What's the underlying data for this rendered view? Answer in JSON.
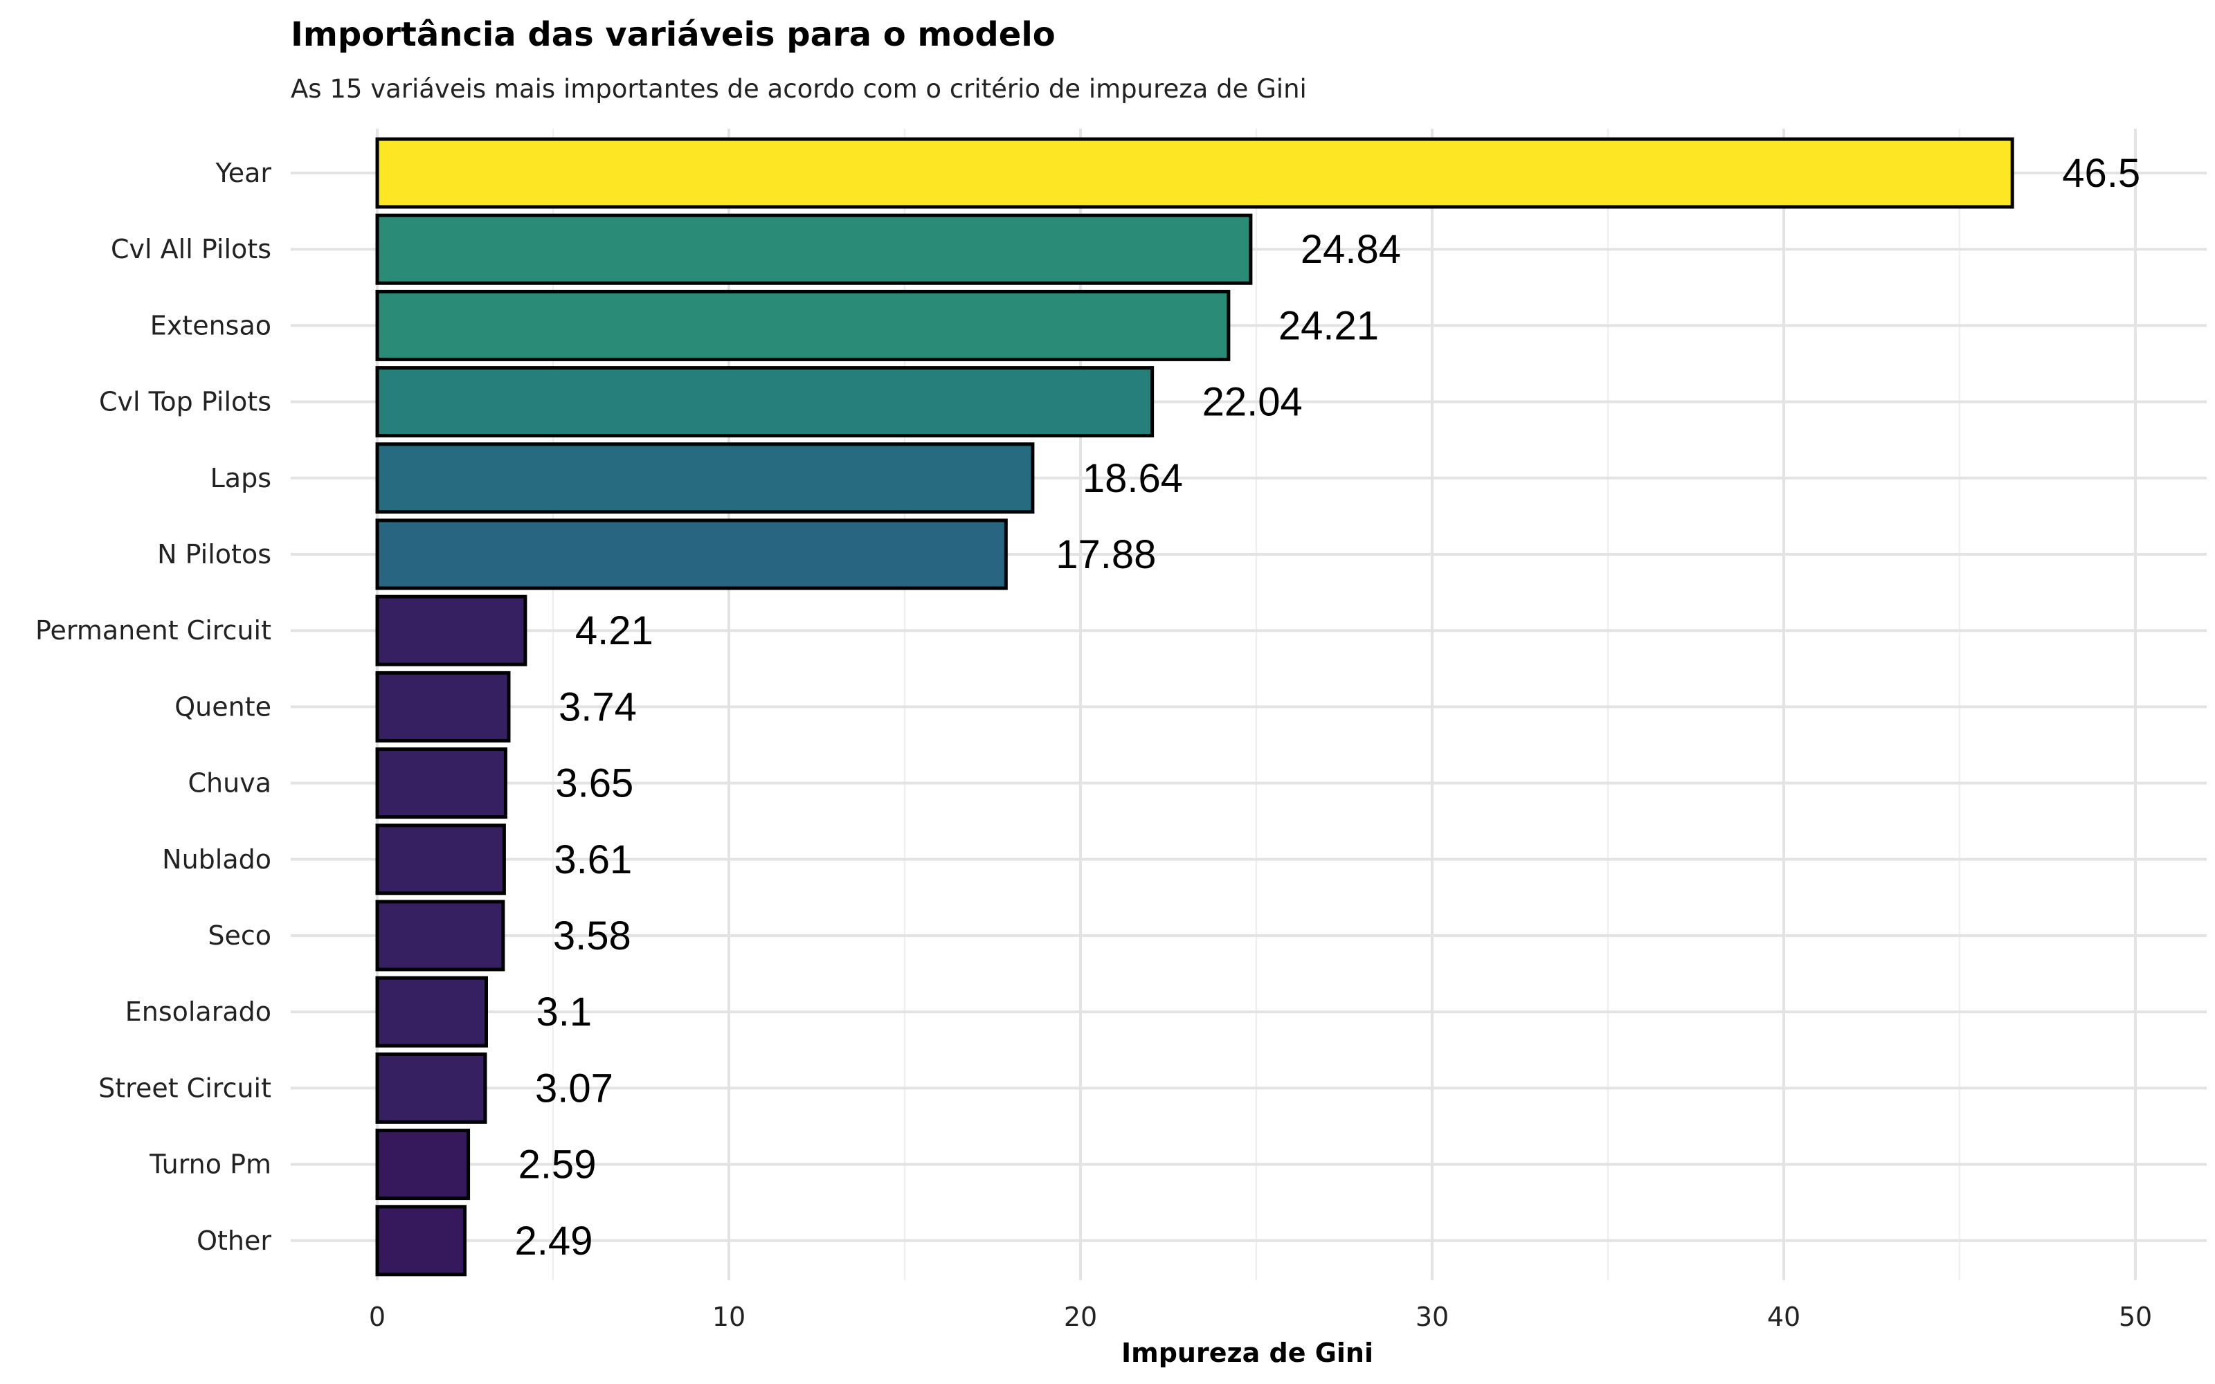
{
  "chart_data": {
    "type": "bar",
    "orientation": "horizontal",
    "title": "Importância das variáveis para o modelo",
    "subtitle": "As 15 variáveis mais importantes de acordo com o critério de impureza de Gini",
    "xlabel": "Impureza de Gini",
    "ylabel": "",
    "xlim": [
      0,
      50
    ],
    "xticks": [
      "0",
      "10",
      "20",
      "30",
      "40",
      "50"
    ],
    "grid": true,
    "categories": [
      "Year",
      "Cvl All Pilots",
      "Extensao",
      "Cvl Top Pilots",
      "Laps",
      "N Pilotos",
      "Permanent Circuit",
      "Quente",
      "Chuva",
      "Nublado",
      "Seco",
      "Ensolarado",
      "Street Circuit",
      "Turno Pm",
      "Other"
    ],
    "values": [
      46.5,
      24.84,
      24.21,
      22.04,
      18.64,
      17.88,
      4.21,
      3.74,
      3.65,
      3.61,
      3.58,
      3.1,
      3.07,
      2.59,
      2.49
    ],
    "value_labels": [
      "46.5",
      "24.84",
      "24.21",
      "22.04",
      "18.64",
      "17.88",
      "4.21",
      "3.74",
      "3.65",
      "3.61",
      "3.58",
      "3.1",
      "3.07",
      "2.59",
      "2.49"
    ],
    "colors": [
      "#fde725",
      "#2a8b77",
      "#2a8b77",
      "#267f7b",
      "#276b80",
      "#286580",
      "#362062",
      "#362062",
      "#362062",
      "#362062",
      "#362062",
      "#362062",
      "#362062",
      "#36195c",
      "#36195c"
    ],
    "legend": "none"
  }
}
